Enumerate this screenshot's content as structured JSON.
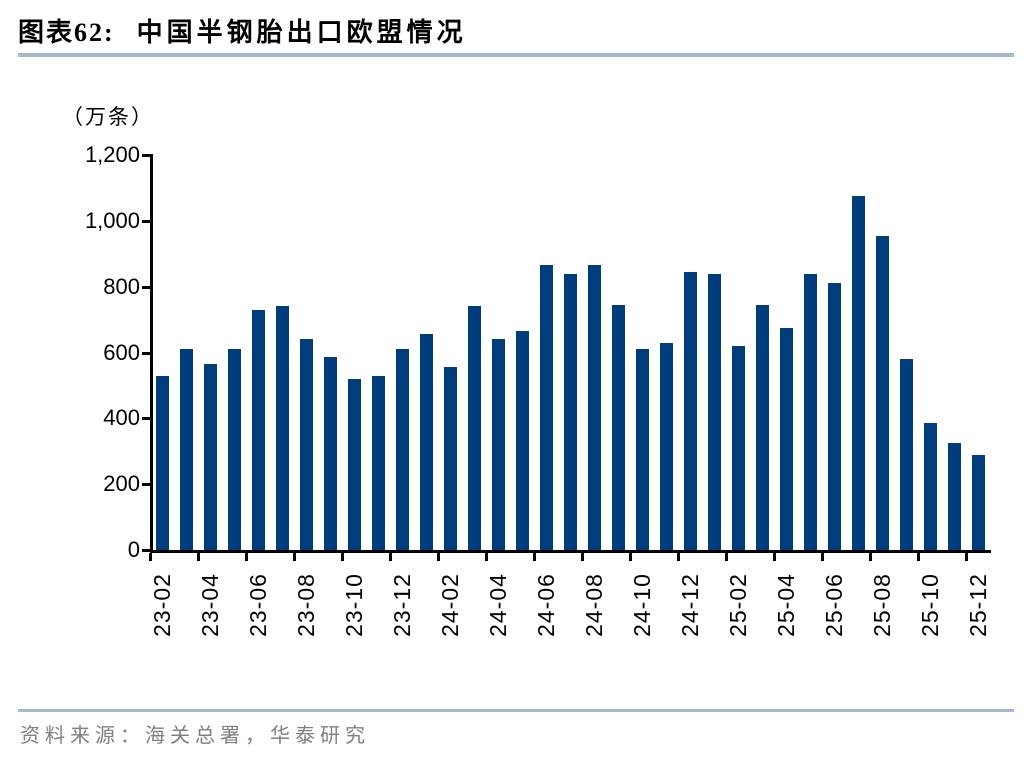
{
  "header": {
    "chart_label": "图表62:",
    "chart_title": "中国半钢胎出口欧盟情况"
  },
  "colors": {
    "bar": "#003D7C",
    "rule": "#A3B9CE",
    "axis": "#000000",
    "source_text": "#7F7F7F"
  },
  "chart_data": {
    "type": "bar",
    "title": "中国半钢胎出口欧盟情况",
    "ylabel": "（万条）",
    "ylim": [
      0,
      1200
    ],
    "y_tick_step": 200,
    "grid": false,
    "legend": "none",
    "y_ticks": [
      {
        "label": "1,200",
        "value": 1200
      },
      {
        "label": "1,000",
        "value": 1000
      },
      {
        "label": "800",
        "value": 800
      },
      {
        "label": "600",
        "value": 600
      },
      {
        "label": "400",
        "value": 400
      },
      {
        "label": "200",
        "value": 200
      },
      {
        "label": "0",
        "value": 0
      }
    ],
    "categories": [
      "23-02",
      "23-03",
      "23-04",
      "23-05",
      "23-06",
      "23-07",
      "23-08",
      "23-09",
      "23-10",
      "23-11",
      "23-12",
      "24-01",
      "24-02",
      "24-03",
      "24-04",
      "24-05",
      "24-06",
      "24-07",
      "24-08",
      "24-09",
      "24-10",
      "24-11",
      "24-12",
      "25-01",
      "25-02",
      "25-03",
      "25-04",
      "25-05",
      "25-06",
      "25-07",
      "25-08",
      "25-09",
      "25-10",
      "25-11",
      "25-12"
    ],
    "values": [
      530,
      610,
      565,
      610,
      730,
      740,
      640,
      585,
      520,
      530,
      610,
      655,
      555,
      740,
      640,
      665,
      865,
      840,
      865,
      745,
      610,
      630,
      845,
      840,
      620,
      745,
      675,
      840,
      810,
      1075,
      955,
      580,
      385,
      325,
      290
    ],
    "x_tick_labels": [
      "23-02",
      "23-04",
      "23-06",
      "23-08",
      "23-10",
      "23-12",
      "24-02",
      "24-04",
      "24-06",
      "24-08",
      "24-10",
      "24-12",
      "25-02",
      "25-04",
      "25-06",
      "25-08",
      "25-10",
      "25-12"
    ]
  },
  "footer": {
    "source": "资料来源：海关总署，华泰研究"
  }
}
